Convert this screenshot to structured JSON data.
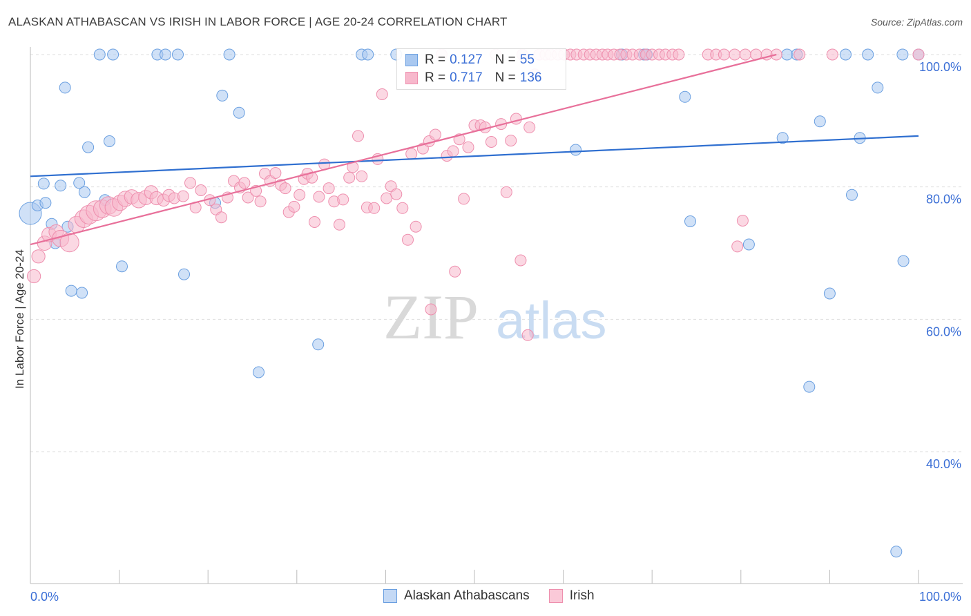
{
  "title": "ALASKAN ATHABASCAN VS IRISH IN LABOR FORCE | AGE 20-24 CORRELATION CHART",
  "source": "Source: ZipAtlas.com",
  "watermark": {
    "zip": "ZIP",
    "atlas": "atlas"
  },
  "legend": {
    "rows": [
      {
        "r_label": "R =",
        "r_value": "0.127",
        "n_label": "N =",
        "n_value": "55"
      },
      {
        "r_label": "R =",
        "r_value": "0.717",
        "n_label": "N =",
        "n_value": "136"
      }
    ]
  },
  "bottom_legend": [
    "Alaskan Athabascans",
    "Irish"
  ],
  "colors": {
    "blue_fill": "#a9c8f0",
    "blue_stroke": "#6a9fe0",
    "blue_line": "#2f6fd0",
    "pink_fill": "#f7b8cc",
    "pink_stroke": "#ee8fae",
    "pink_line": "#e8709a",
    "tick_label": "#3b6fd6",
    "grid": "#dddddd"
  },
  "chart_data": {
    "type": "scatter",
    "title": "ALASKAN ATHABASCAN VS IRISH IN LABOR FORCE | AGE 20-24 CORRELATION CHART",
    "xlabel": "",
    "ylabel": "In Labor Force | Age 20-24",
    "xlim": [
      0,
      100
    ],
    "ylim": [
      20,
      102
    ],
    "x_tick_labels": [
      "0.0%",
      "100.0%"
    ],
    "y_ticks": [
      40,
      60,
      80,
      100
    ],
    "y_tick_labels": [
      "40.0%",
      "60.0%",
      "80.0%",
      "100.0%"
    ],
    "grid": true,
    "legend_position": "top-center",
    "series": [
      {
        "name": "Alaskan Athabascans",
        "color": "#a9c8f0",
        "r": "0.127",
        "n": "55",
        "trend": {
          "x": [
            0,
            100
          ],
          "y": [
            81.6,
            87.7
          ]
        },
        "points": [
          {
            "x": 0.0,
            "y": 76.0,
            "s": 2.0
          },
          {
            "x": 0.8,
            "y": 77.2,
            "s": 1
          },
          {
            "x": 1.5,
            "y": 80.5,
            "s": 1
          },
          {
            "x": 1.7,
            "y": 77.6,
            "s": 1
          },
          {
            "x": 2.4,
            "y": 74.4,
            "s": 1
          },
          {
            "x": 2.8,
            "y": 71.5,
            "s": 1
          },
          {
            "x": 3.4,
            "y": 80.2,
            "s": 1
          },
          {
            "x": 3.9,
            "y": 95.0,
            "s": 1
          },
          {
            "x": 4.2,
            "y": 74.0,
            "s": 1
          },
          {
            "x": 4.6,
            "y": 64.3,
            "s": 1
          },
          {
            "x": 5.5,
            "y": 80.6,
            "s": 1
          },
          {
            "x": 5.8,
            "y": 64.0,
            "s": 1
          },
          {
            "x": 6.1,
            "y": 79.2,
            "s": 1
          },
          {
            "x": 6.5,
            "y": 86.0,
            "s": 1
          },
          {
            "x": 7.8,
            "y": 100.0,
            "s": 1
          },
          {
            "x": 8.4,
            "y": 78.0,
            "s": 1
          },
          {
            "x": 8.9,
            "y": 86.9,
            "s": 1
          },
          {
            "x": 9.3,
            "y": 100.0,
            "s": 1
          },
          {
            "x": 10.3,
            "y": 68.0,
            "s": 1
          },
          {
            "x": 14.3,
            "y": 100.0,
            "s": 1
          },
          {
            "x": 15.2,
            "y": 100.0,
            "s": 1
          },
          {
            "x": 16.6,
            "y": 100.0,
            "s": 1
          },
          {
            "x": 17.3,
            "y": 66.8,
            "s": 1
          },
          {
            "x": 20.8,
            "y": 77.6,
            "s": 1
          },
          {
            "x": 21.6,
            "y": 93.8,
            "s": 1
          },
          {
            "x": 22.4,
            "y": 100.0,
            "s": 1
          },
          {
            "x": 23.5,
            "y": 91.2,
            "s": 1
          },
          {
            "x": 25.7,
            "y": 52.0,
            "s": 1
          },
          {
            "x": 32.4,
            "y": 56.2,
            "s": 1
          },
          {
            "x": 37.3,
            "y": 100.0,
            "s": 1
          },
          {
            "x": 38.0,
            "y": 100.0,
            "s": 1
          },
          {
            "x": 41.2,
            "y": 100.0,
            "s": 1
          },
          {
            "x": 55.4,
            "y": 100.0,
            "s": 1
          },
          {
            "x": 61.4,
            "y": 85.6,
            "s": 1
          },
          {
            "x": 66.6,
            "y": 100.0,
            "s": 1
          },
          {
            "x": 69.1,
            "y": 100.0,
            "s": 1
          },
          {
            "x": 69.4,
            "y": 100.0,
            "s": 1
          },
          {
            "x": 73.7,
            "y": 93.6,
            "s": 1
          },
          {
            "x": 74.3,
            "y": 74.8,
            "s": 1
          },
          {
            "x": 80.9,
            "y": 71.3,
            "s": 1
          },
          {
            "x": 84.7,
            "y": 87.4,
            "s": 1
          },
          {
            "x": 85.2,
            "y": 100.0,
            "s": 1
          },
          {
            "x": 86.3,
            "y": 100.0,
            "s": 1
          },
          {
            "x": 88.9,
            "y": 89.9,
            "s": 1
          },
          {
            "x": 90.0,
            "y": 63.9,
            "s": 1
          },
          {
            "x": 91.8,
            "y": 100.0,
            "s": 1
          },
          {
            "x": 94.3,
            "y": 100.0,
            "s": 1
          },
          {
            "x": 95.4,
            "y": 95.0,
            "s": 1
          },
          {
            "x": 97.5,
            "y": 24.9,
            "s": 1
          },
          {
            "x": 98.2,
            "y": 100.0,
            "s": 1
          },
          {
            "x": 100.0,
            "y": 100.0,
            "s": 1
          },
          {
            "x": 87.7,
            "y": 49.8,
            "s": 1
          },
          {
            "x": 92.5,
            "y": 78.8,
            "s": 1
          },
          {
            "x": 93.4,
            "y": 87.4,
            "s": 1
          },
          {
            "x": 98.3,
            "y": 68.8,
            "s": 1
          }
        ]
      },
      {
        "name": "Irish",
        "color": "#f7b8cc",
        "r": "0.717",
        "n": "136",
        "trend": {
          "x": [
            0,
            84.0
          ],
          "y": [
            71.3,
            100.0
          ]
        },
        "points": [
          {
            "x": 0.4,
            "y": 66.5,
            "s": 1.2
          },
          {
            "x": 0.9,
            "y": 69.5,
            "s": 1.2
          },
          {
            "x": 1.6,
            "y": 71.5,
            "s": 1.3
          },
          {
            "x": 2.1,
            "y": 72.8,
            "s": 1.3
          },
          {
            "x": 2.9,
            "y": 73.2,
            "s": 1.3
          },
          {
            "x": 3.4,
            "y": 72.2,
            "s": 1.5
          },
          {
            "x": 4.4,
            "y": 71.6,
            "s": 1.7
          },
          {
            "x": 5.2,
            "y": 74.3,
            "s": 1.5
          },
          {
            "x": 6.0,
            "y": 75.2,
            "s": 1.6
          },
          {
            "x": 6.6,
            "y": 75.8,
            "s": 1.7
          },
          {
            "x": 7.4,
            "y": 76.4,
            "s": 1.8
          },
          {
            "x": 8.1,
            "y": 76.7,
            "s": 1.6
          },
          {
            "x": 8.8,
            "y": 77.2,
            "s": 1.6
          },
          {
            "x": 9.4,
            "y": 76.9,
            "s": 1.6
          },
          {
            "x": 10.1,
            "y": 77.6,
            "s": 1.4
          },
          {
            "x": 10.7,
            "y": 78.2,
            "s": 1.4
          },
          {
            "x": 11.4,
            "y": 78.5,
            "s": 1.3
          },
          {
            "x": 12.2,
            "y": 78.0,
            "s": 1.4
          },
          {
            "x": 13.0,
            "y": 78.4,
            "s": 1.3
          },
          {
            "x": 13.6,
            "y": 79.2,
            "s": 1.2
          },
          {
            "x": 14.2,
            "y": 78.3,
            "s": 1.2
          },
          {
            "x": 15.0,
            "y": 78.0,
            "s": 1.1
          },
          {
            "x": 15.6,
            "y": 78.7,
            "s": 1.1
          },
          {
            "x": 16.2,
            "y": 78.3,
            "s": 1.0
          },
          {
            "x": 17.2,
            "y": 78.6,
            "s": 1.0
          },
          {
            "x": 18.0,
            "y": 80.6,
            "s": 1.0
          },
          {
            "x": 18.6,
            "y": 76.9,
            "s": 1.0
          },
          {
            "x": 19.2,
            "y": 79.5,
            "s": 1.0
          },
          {
            "x": 20.2,
            "y": 78.0,
            "s": 1.0
          },
          {
            "x": 20.9,
            "y": 76.6,
            "s": 1.0
          },
          {
            "x": 21.5,
            "y": 75.4,
            "s": 1.0
          },
          {
            "x": 22.2,
            "y": 78.4,
            "s": 1.0
          },
          {
            "x": 22.9,
            "y": 80.9,
            "s": 1.0
          },
          {
            "x": 23.6,
            "y": 79.9,
            "s": 1.0
          },
          {
            "x": 24.1,
            "y": 80.6,
            "s": 1.0
          },
          {
            "x": 24.5,
            "y": 78.4,
            "s": 1.0
          },
          {
            "x": 25.4,
            "y": 79.4,
            "s": 1.0
          },
          {
            "x": 25.9,
            "y": 77.8,
            "s": 1.0
          },
          {
            "x": 26.4,
            "y": 82.0,
            "s": 1.0
          },
          {
            "x": 27.0,
            "y": 80.9,
            "s": 1.0
          },
          {
            "x": 27.6,
            "y": 82.1,
            "s": 1.0
          },
          {
            "x": 28.2,
            "y": 80.3,
            "s": 1.0
          },
          {
            "x": 28.7,
            "y": 79.8,
            "s": 1.0
          },
          {
            "x": 29.1,
            "y": 76.2,
            "s": 1.0
          },
          {
            "x": 29.7,
            "y": 77.0,
            "s": 1.0
          },
          {
            "x": 30.3,
            "y": 78.8,
            "s": 1.0
          },
          {
            "x": 30.8,
            "y": 81.2,
            "s": 1.0
          },
          {
            "x": 31.2,
            "y": 82.0,
            "s": 1.0
          },
          {
            "x": 31.7,
            "y": 81.4,
            "s": 1.0
          },
          {
            "x": 32.0,
            "y": 74.7,
            "s": 1.0
          },
          {
            "x": 32.5,
            "y": 78.5,
            "s": 1.0
          },
          {
            "x": 33.1,
            "y": 83.4,
            "s": 1.0
          },
          {
            "x": 33.6,
            "y": 79.8,
            "s": 1.0
          },
          {
            "x": 34.2,
            "y": 77.8,
            "s": 1.0
          },
          {
            "x": 34.8,
            "y": 74.3,
            "s": 1.0
          },
          {
            "x": 35.2,
            "y": 78.1,
            "s": 1.0
          },
          {
            "x": 35.9,
            "y": 81.4,
            "s": 1.0
          },
          {
            "x": 36.3,
            "y": 83.0,
            "s": 1.0
          },
          {
            "x": 36.9,
            "y": 87.7,
            "s": 1.0
          },
          {
            "x": 37.3,
            "y": 81.6,
            "s": 1.0
          },
          {
            "x": 37.9,
            "y": 76.9,
            "s": 1.0
          },
          {
            "x": 38.7,
            "y": 76.8,
            "s": 1.0
          },
          {
            "x": 39.1,
            "y": 84.2,
            "s": 1.0
          },
          {
            "x": 39.6,
            "y": 94.0,
            "s": 1.0
          },
          {
            "x": 40.1,
            "y": 78.3,
            "s": 1.0
          },
          {
            "x": 40.6,
            "y": 80.1,
            "s": 1.0
          },
          {
            "x": 41.2,
            "y": 78.9,
            "s": 1.0
          },
          {
            "x": 41.9,
            "y": 76.8,
            "s": 1.0
          },
          {
            "x": 42.5,
            "y": 72.0,
            "s": 1.0
          },
          {
            "x": 42.9,
            "y": 85.0,
            "s": 1.0
          },
          {
            "x": 43.4,
            "y": 74.0,
            "s": 1.0
          },
          {
            "x": 44.2,
            "y": 85.8,
            "s": 1.0
          },
          {
            "x": 44.9,
            "y": 86.9,
            "s": 1.0
          },
          {
            "x": 45.6,
            "y": 87.9,
            "s": 1.0
          },
          {
            "x": 46.3,
            "y": 100.0,
            "s": 1.0
          },
          {
            "x": 46.9,
            "y": 84.7,
            "s": 1.0
          },
          {
            "x": 47.6,
            "y": 85.4,
            "s": 1.0
          },
          {
            "x": 48.3,
            "y": 87.2,
            "s": 1.0
          },
          {
            "x": 48.8,
            "y": 78.2,
            "s": 1.0
          },
          {
            "x": 49.3,
            "y": 86.0,
            "s": 1.0
          },
          {
            "x": 50.0,
            "y": 89.3,
            "s": 1.0
          },
          {
            "x": 50.7,
            "y": 89.3,
            "s": 1.0
          },
          {
            "x": 51.2,
            "y": 89.0,
            "s": 1.0
          },
          {
            "x": 51.9,
            "y": 86.8,
            "s": 1.0
          },
          {
            "x": 52.4,
            "y": 100.0,
            "s": 1.0
          },
          {
            "x": 53.0,
            "y": 89.5,
            "s": 1.0
          },
          {
            "x": 53.6,
            "y": 79.2,
            "s": 1.0
          },
          {
            "x": 54.1,
            "y": 87.0,
            "s": 1.0
          },
          {
            "x": 54.7,
            "y": 90.3,
            "s": 1.0
          },
          {
            "x": 55.4,
            "y": 100.0,
            "s": 1.0
          },
          {
            "x": 56.2,
            "y": 89.0,
            "s": 1.0
          },
          {
            "x": 56.8,
            "y": 97.0,
            "s": 1.0
          },
          {
            "x": 57.3,
            "y": 100.0,
            "s": 1.0
          },
          {
            "x": 58.0,
            "y": 100.0,
            "s": 1.0
          },
          {
            "x": 58.6,
            "y": 100.0,
            "s": 1.0
          },
          {
            "x": 59.4,
            "y": 100.0,
            "s": 1.0
          },
          {
            "x": 60.1,
            "y": 100.0,
            "s": 1.0
          },
          {
            "x": 60.8,
            "y": 100.0,
            "s": 1.0
          },
          {
            "x": 61.5,
            "y": 100.0,
            "s": 1.0
          },
          {
            "x": 62.3,
            "y": 100.0,
            "s": 1.0
          },
          {
            "x": 63.0,
            "y": 100.0,
            "s": 1.0
          },
          {
            "x": 63.7,
            "y": 100.0,
            "s": 1.0
          },
          {
            "x": 64.4,
            "y": 100.0,
            "s": 1.0
          },
          {
            "x": 65.0,
            "y": 100.0,
            "s": 1.0
          },
          {
            "x": 65.7,
            "y": 100.0,
            "s": 1.0
          },
          {
            "x": 66.4,
            "y": 100.0,
            "s": 1.0
          },
          {
            "x": 67.1,
            "y": 100.0,
            "s": 1.0
          },
          {
            "x": 67.8,
            "y": 100.0,
            "s": 1.0
          },
          {
            "x": 68.6,
            "y": 100.0,
            "s": 1.0
          },
          {
            "x": 69.3,
            "y": 100.0,
            "s": 1.0
          },
          {
            "x": 70.0,
            "y": 100.0,
            "s": 1.0
          },
          {
            "x": 70.8,
            "y": 100.0,
            "s": 1.0
          },
          {
            "x": 71.5,
            "y": 100.0,
            "s": 1.0
          },
          {
            "x": 72.3,
            "y": 100.0,
            "s": 1.0
          },
          {
            "x": 73.0,
            "y": 100.0,
            "s": 1.0
          },
          {
            "x": 76.3,
            "y": 100.0,
            "s": 1.0
          },
          {
            "x": 77.2,
            "y": 100.0,
            "s": 1.0
          },
          {
            "x": 78.1,
            "y": 100.0,
            "s": 1.0
          },
          {
            "x": 79.3,
            "y": 100.0,
            "s": 1.0
          },
          {
            "x": 80.5,
            "y": 100.0,
            "s": 1.0
          },
          {
            "x": 81.7,
            "y": 100.0,
            "s": 1.0
          },
          {
            "x": 82.9,
            "y": 100.0,
            "s": 1.0
          },
          {
            "x": 84.0,
            "y": 100.0,
            "s": 1.0
          },
          {
            "x": 80.2,
            "y": 74.9,
            "s": 1.0
          },
          {
            "x": 79.6,
            "y": 71.0,
            "s": 1.0
          },
          {
            "x": 56.0,
            "y": 57.6,
            "s": 1.0
          },
          {
            "x": 45.1,
            "y": 61.5,
            "s": 1.0
          },
          {
            "x": 47.8,
            "y": 67.2,
            "s": 1.0
          },
          {
            "x": 55.2,
            "y": 68.9,
            "s": 1.0
          },
          {
            "x": 100.0,
            "y": 100.0,
            "s": 1.0
          },
          {
            "x": 86.6,
            "y": 100.0,
            "s": 1.0
          },
          {
            "x": 90.3,
            "y": 100.0,
            "s": 1.0
          }
        ]
      }
    ]
  }
}
